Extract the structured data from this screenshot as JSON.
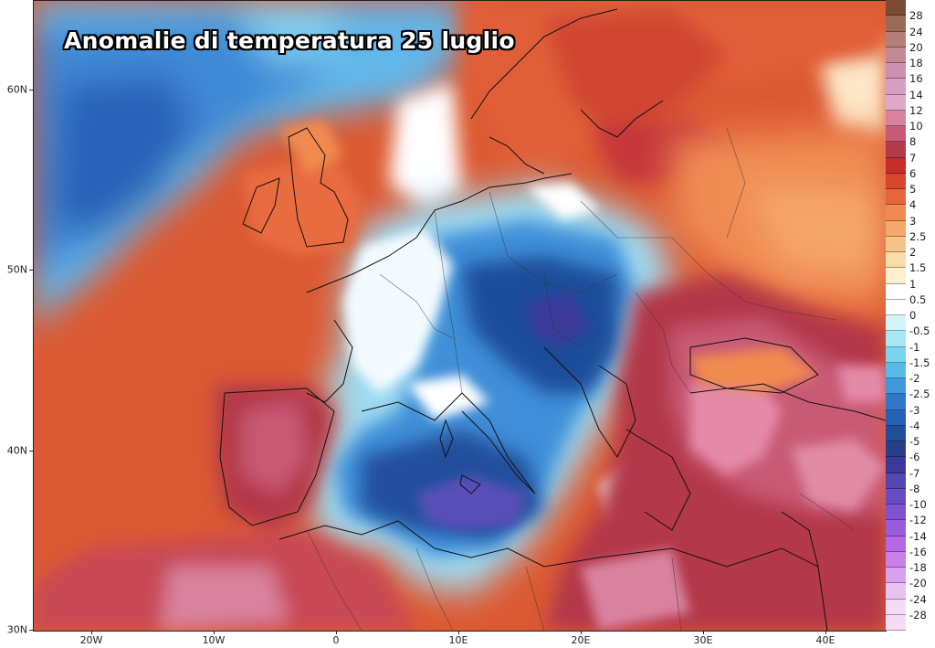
{
  "title": "Anomalie di temperatura 25 luglio",
  "axes": {
    "lat_labels": [
      "60N",
      "50N",
      "40N",
      "30N"
    ],
    "lon_labels": [
      "20W",
      "10W",
      "0",
      "10E",
      "20E",
      "30E",
      "40E"
    ]
  },
  "colorbar": {
    "levels": [
      "28",
      "24",
      "20",
      "18",
      "16",
      "14",
      "12",
      "10",
      "8",
      "7",
      "6",
      "5",
      "4",
      "3",
      "2.5",
      "2",
      "1.5",
      "1",
      "0.5",
      "0",
      "-0.5",
      "-1",
      "-1.5",
      "-2",
      "-2.5",
      "-3",
      "-4",
      "-5",
      "-6",
      "-7",
      "-8",
      "-10",
      "-12",
      "-14",
      "-16",
      "-18",
      "-20",
      "-24",
      "-28"
    ],
    "colors": [
      "#7a4a33",
      "#9a6a55",
      "#b47f78",
      "#c28a96",
      "#cc8fb0",
      "#d79ec4",
      "#e0a8c8",
      "#d9829f",
      "#c95a76",
      "#b33a4a",
      "#c62d2a",
      "#d6452c",
      "#e8643c",
      "#f08a50",
      "#f5a86a",
      "#f7c488",
      "#fadca8",
      "#fdf0cf",
      "#ffffff",
      "#ffffff",
      "#d2f3f7",
      "#a5e7f2",
      "#7ad3ee",
      "#58b8e8",
      "#3f98dc",
      "#2f78c9",
      "#2460b2",
      "#1f4f98",
      "#2a3f8a",
      "#3b3a9a",
      "#5446b0",
      "#6a4cc4",
      "#8052d0",
      "#9a5cdc",
      "#b466e4",
      "#c97ee8",
      "#d9a0ee",
      "#e9c2f2",
      "#f4dcf6"
    ]
  },
  "map_data": {
    "colors": {
      "ocean_warm": "#d9532f",
      "strong_warm": "#b8343a",
      "hot_core": "#e489a8",
      "cool_ocean": "#3a7fcf",
      "deep_cool": "#1e4a8f",
      "purple_cold": "#5a52b8",
      "neutral": "#ffffff",
      "light_cold": "#a6e0f0"
    }
  }
}
